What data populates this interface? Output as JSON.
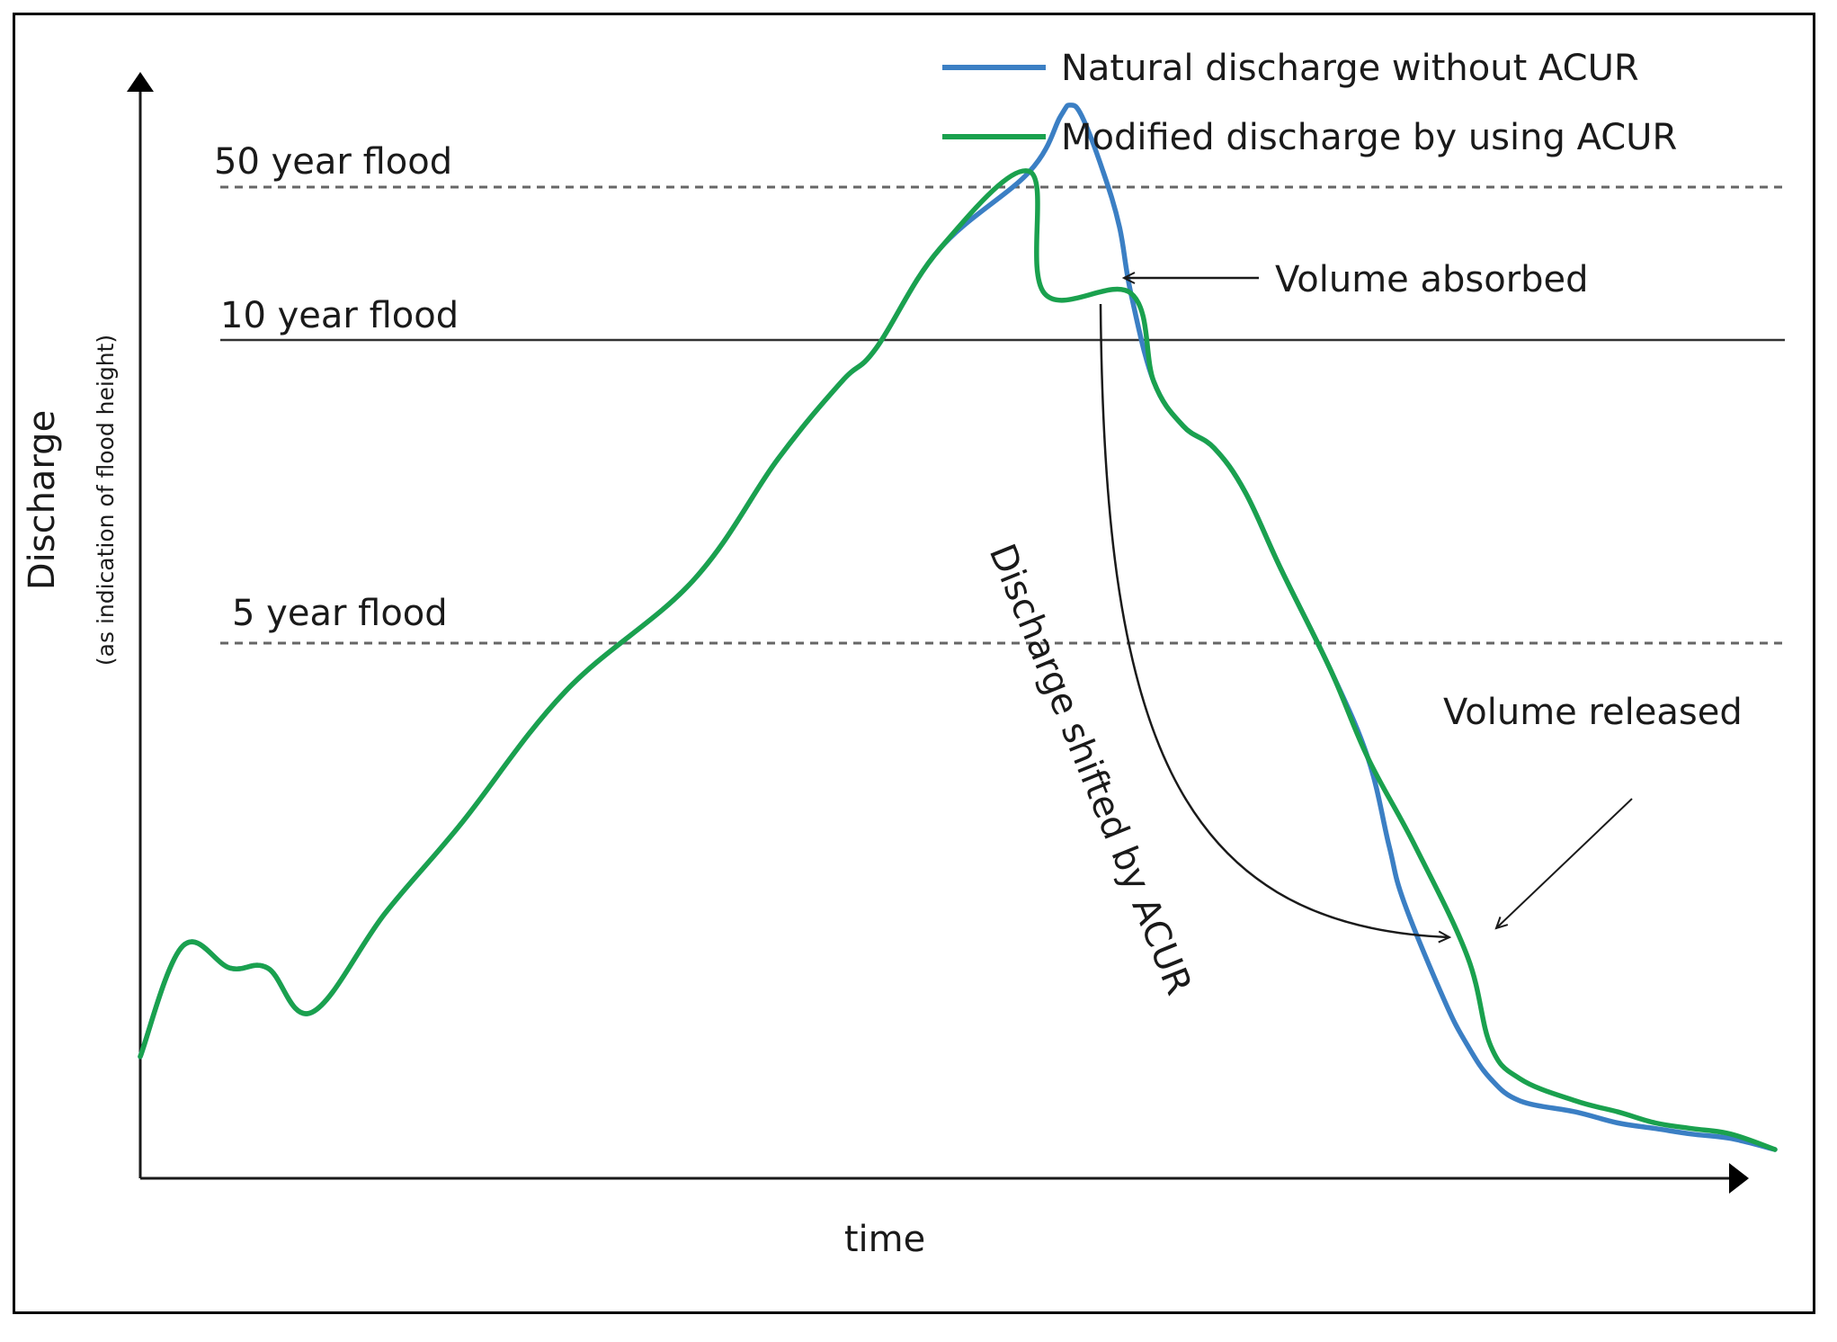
{
  "chart_data": {
    "type": "line",
    "title": "",
    "xlabel": "time",
    "ylabel": "Discharge",
    "ylabel_sub": "(as indication of flood height)",
    "xlim": [
      0,
      100
    ],
    "ylim": [
      0,
      100
    ],
    "grid": false,
    "legend_position": "top-right",
    "reference_lines": [
      {
        "label": "50 year flood",
        "y": 95,
        "style": "dashed"
      },
      {
        "label": "10 year flood",
        "y": 79,
        "style": "solid"
      },
      {
        "label": "5 year flood",
        "y": 52,
        "style": "dashed"
      }
    ],
    "series": [
      {
        "name": "Natural discharge without ACUR",
        "color": "#3b7fc4",
        "x": [
          0,
          2.6,
          5.5,
          7.8,
          10.5,
          15,
          19.6,
          26,
          33.8,
          39,
          42.9,
          45,
          48.9,
          54.4,
          56.3,
          56.9,
          57.6,
          58.9,
          59.9,
          60.6,
          62,
          63.8,
          65.7,
          67.6,
          69.8,
          72.8,
          75.1,
          76.4,
          77.3,
          79.8,
          81.2,
          82.6,
          84.4,
          87.8,
          90.4,
          92.7,
          94.9,
          97.3,
          100
        ],
        "values": [
          11,
          21,
          19,
          19,
          15,
          24,
          32,
          44,
          54,
          65,
          72,
          75,
          84,
          91,
          96,
          97,
          96,
          91,
          86,
          80,
          72,
          68,
          66,
          62,
          55,
          46,
          38,
          30,
          25,
          16,
          12,
          9,
          7,
          6,
          5,
          4.5,
          4,
          3.6,
          2.6
        ]
      },
      {
        "name": "Modified discharge by using ACUR",
        "color": "#1aa14e",
        "x": [
          0,
          2.6,
          5.5,
          7.8,
          10.5,
          15,
          19.6,
          26,
          33.8,
          39,
          42.9,
          45,
          48.9,
          54.4,
          55.3,
          60.6,
          62,
          63.8,
          65.7,
          67.6,
          69.8,
          72.8,
          75.1,
          78,
          81.2,
          82.6,
          84.4,
          87.8,
          90.4,
          92.7,
          94.9,
          97.3,
          100
        ],
        "values": [
          11,
          21,
          19,
          19,
          15,
          24,
          32,
          44,
          54,
          65,
          72,
          75,
          84,
          91,
          80,
          80,
          72,
          68,
          66,
          62,
          55,
          46,
          38,
          30,
          20,
          12,
          9,
          7,
          6,
          5,
          4.5,
          4,
          2.6
        ]
      }
    ],
    "annotations": [
      {
        "text": "Volume absorbed"
      },
      {
        "text": "Volume released"
      },
      {
        "text": "Discharge shifted by ACUR"
      }
    ]
  }
}
